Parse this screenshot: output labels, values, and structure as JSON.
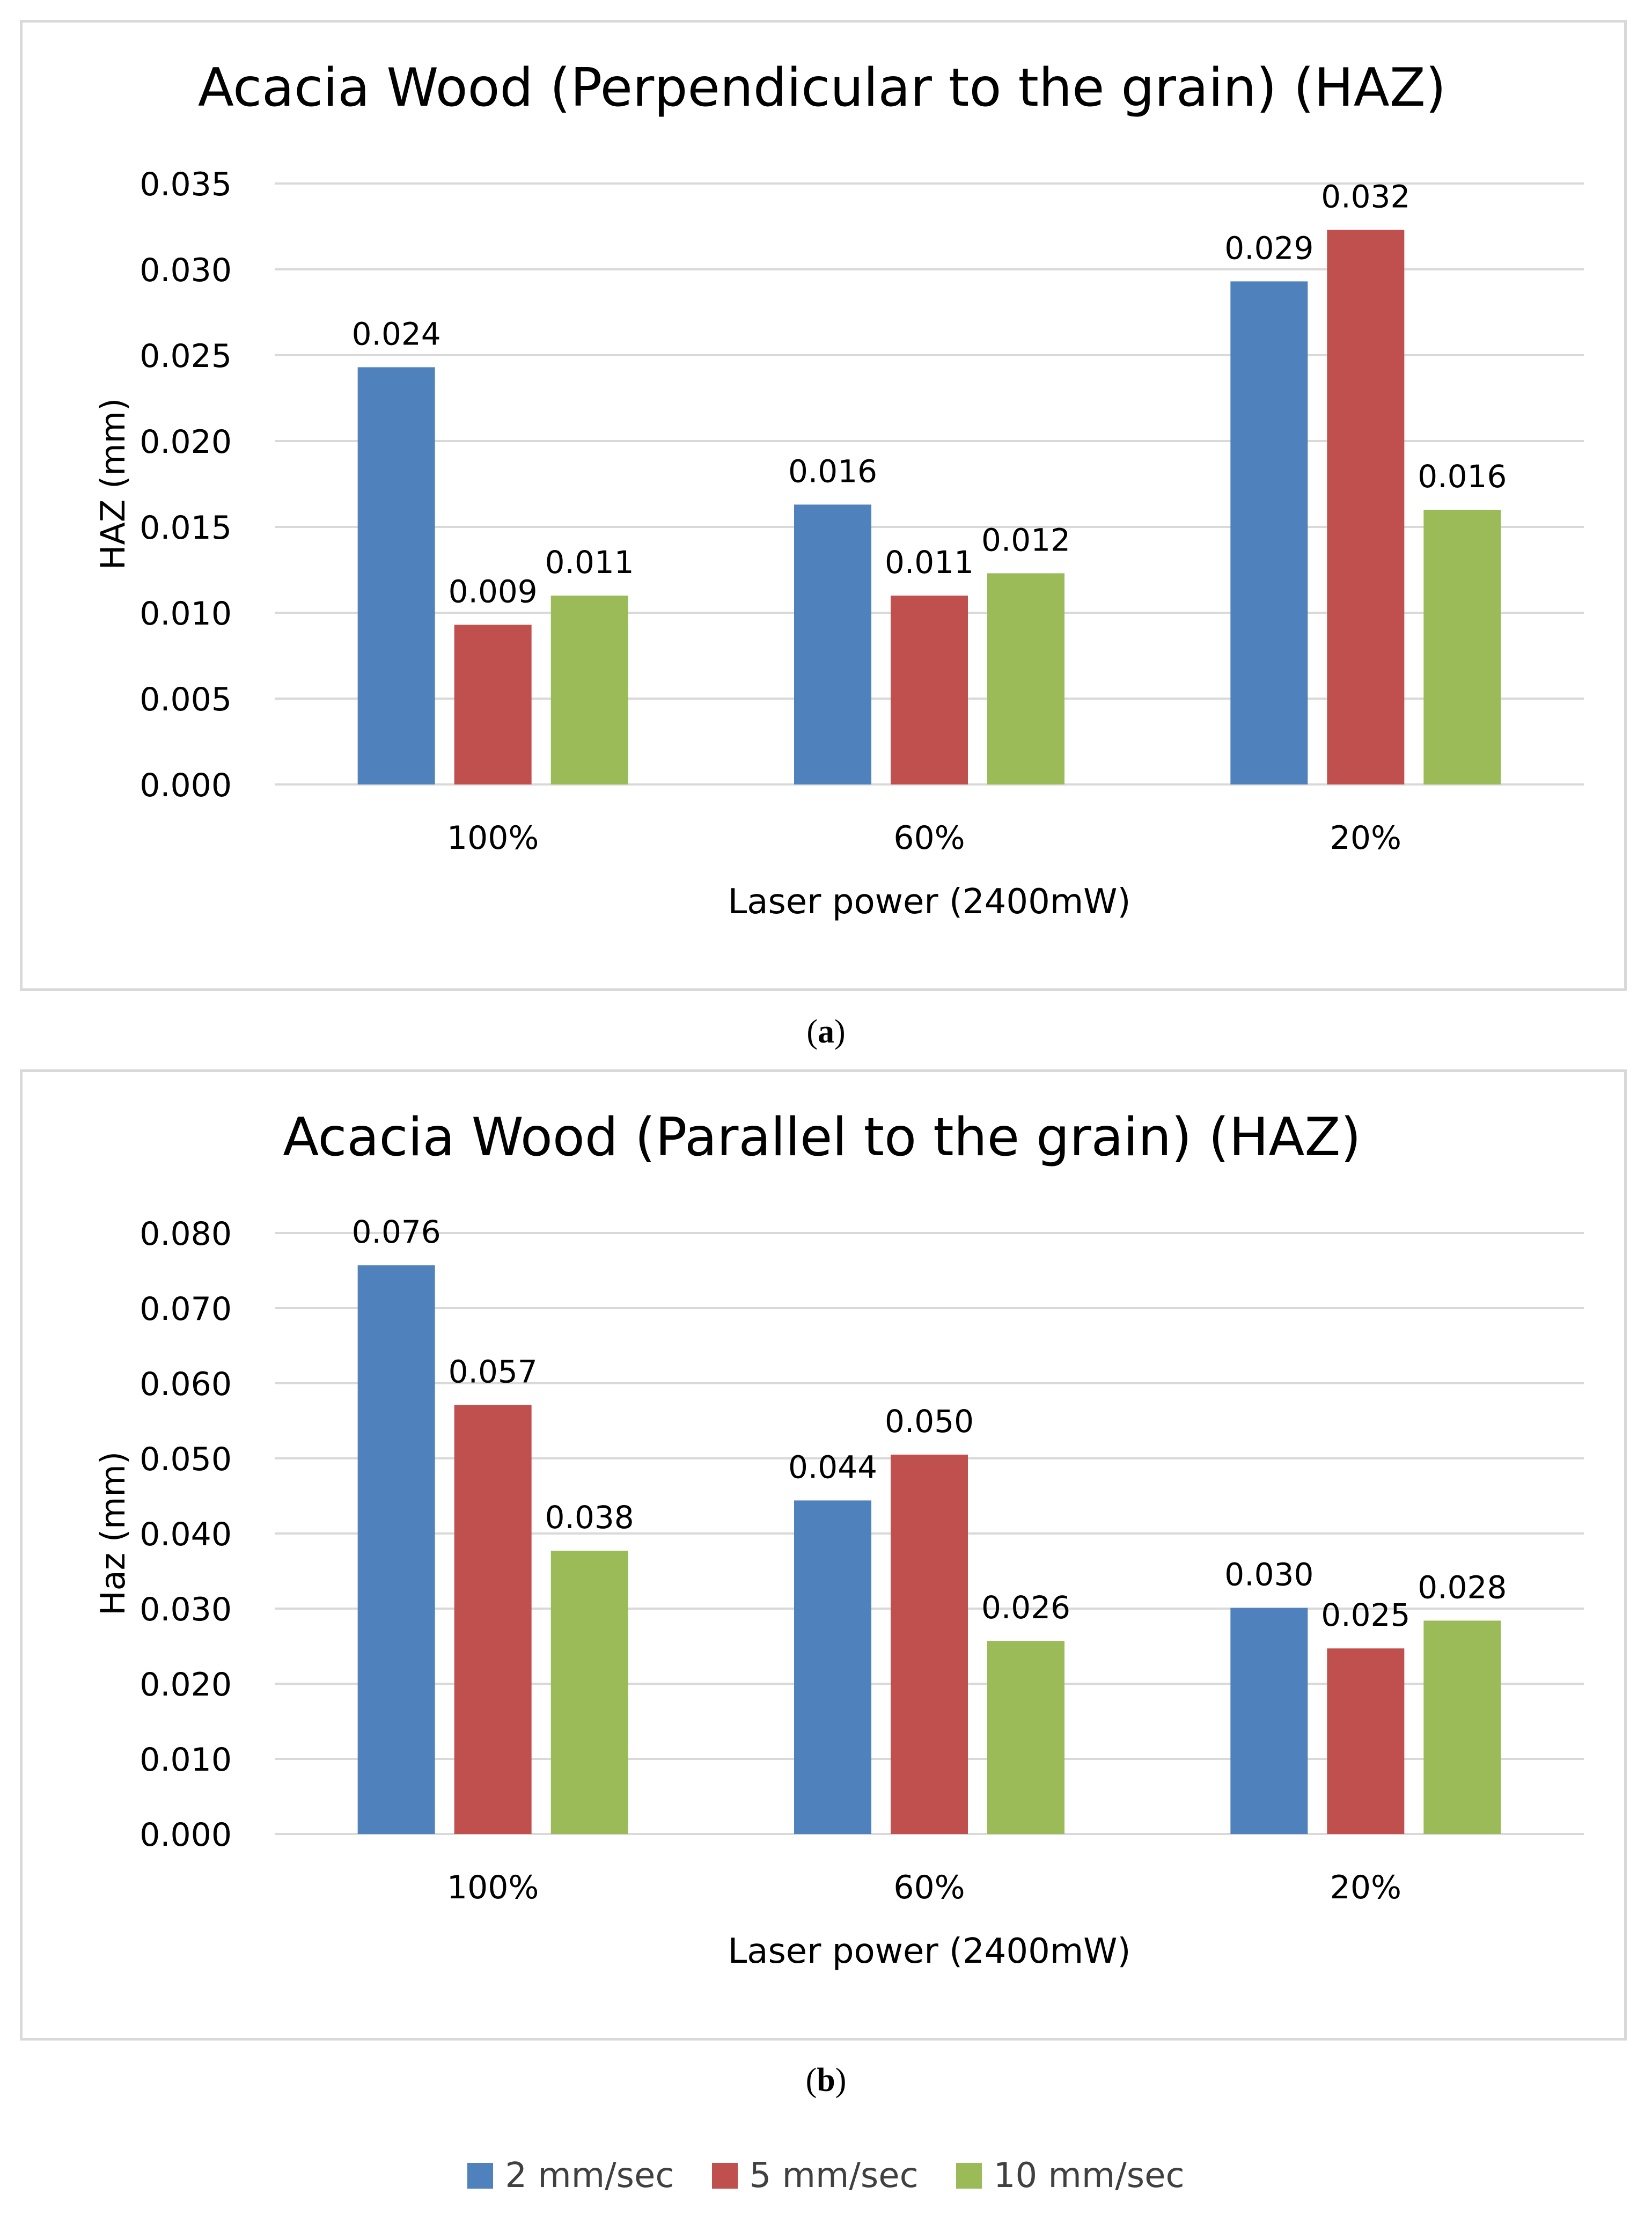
{
  "chart_data": [
    {
      "type": "bar",
      "title": "Acacia Wood (Perpendicular to the grain) (HAZ)",
      "xlabel": "Laser power (2400mW)",
      "ylabel": "HAZ (mm)",
      "categories": [
        "100%",
        "60%",
        "20%"
      ],
      "ylim": [
        0,
        0.035
      ],
      "yticks": [
        "0.000",
        "0.005",
        "0.010",
        "0.015",
        "0.020",
        "0.025",
        "0.030",
        "0.035"
      ],
      "grid": true,
      "series": [
        {
          "name": "2 mm/sec",
          "values": [
            0.0243,
            0.0163,
            0.0293
          ],
          "labels": [
            "0.024",
            "0.016",
            "0.029"
          ]
        },
        {
          "name": "5 mm/sec",
          "values": [
            0.0093,
            0.011,
            0.0323
          ],
          "labels": [
            "0.009",
            "0.011",
            "0.032"
          ]
        },
        {
          "name": "10 mm/sec",
          "values": [
            0.011,
            0.0123,
            0.016
          ],
          "labels": [
            "0.011",
            "0.012",
            "0.016"
          ]
        }
      ],
      "caption": "a"
    },
    {
      "type": "bar",
      "title": "Acacia Wood (Parallel to the grain) (HAZ)",
      "xlabel": "Laser power (2400mW)",
      "ylabel": "Haz (mm)",
      "categories": [
        "100%",
        "60%",
        "20%"
      ],
      "ylim": [
        0,
        0.08
      ],
      "yticks": [
        "0.000",
        "0.010",
        "0.020",
        "0.030",
        "0.040",
        "0.050",
        "0.060",
        "0.070",
        "0.080"
      ],
      "grid": true,
      "series": [
        {
          "name": "2 mm/sec",
          "values": [
            0.0757,
            0.0444,
            0.0301
          ],
          "labels": [
            "0.076",
            "0.044",
            "0.030"
          ]
        },
        {
          "name": "5 mm/sec",
          "values": [
            0.0571,
            0.0505,
            0.0247
          ],
          "labels": [
            "0.057",
            "0.050",
            "0.025"
          ]
        },
        {
          "name": "10 mm/sec",
          "values": [
            0.0377,
            0.0257,
            0.0284
          ],
          "labels": [
            "0.038",
            "0.026",
            "0.028"
          ]
        }
      ],
      "caption": "b"
    }
  ],
  "legend": {
    "placement": "bottom",
    "items": [
      {
        "label": "2 mm/sec",
        "color": "#4F81BD"
      },
      {
        "label": "5 mm/sec",
        "color": "#C0504D"
      },
      {
        "label": "10 mm/sec",
        "color": "#9BBB59"
      }
    ]
  },
  "colors": {
    "series": [
      "#4F81BD",
      "#C0504D",
      "#9BBB59"
    ],
    "gridline": "#d9d9d9",
    "text": "#000000"
  },
  "captions": {
    "a": {
      "open": "(",
      "letter": "a",
      "close": ")"
    },
    "b": {
      "open": "(",
      "letter": "b",
      "close": ")"
    }
  }
}
